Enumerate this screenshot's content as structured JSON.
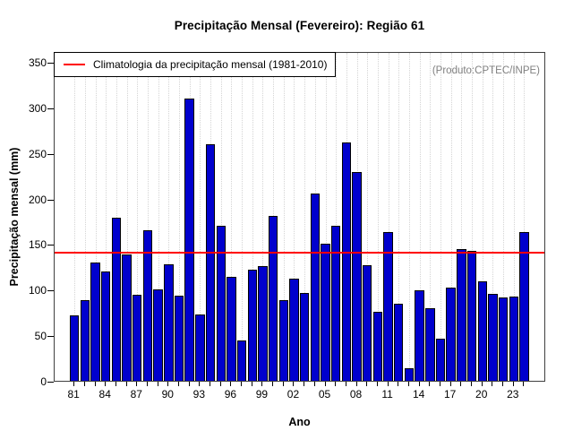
{
  "chart_data": {
    "type": "bar",
    "title": "Precipitação Mensal (Fevereiro): Região 61",
    "xlabel": "Ano",
    "ylabel": "Precipitação mensal (mm)",
    "annotation": "(Produto:CPTEC/INPE)",
    "legend": {
      "label": "Climatologia da precipitação mensal (1981-2010)",
      "position": "topleft",
      "line_color": "#ff0000"
    },
    "reference_line": {
      "name": "climatologia",
      "value": 141,
      "color": "#ff0000"
    },
    "ylim": [
      0,
      350
    ],
    "yticks": [
      0,
      50,
      100,
      150,
      200,
      250,
      300,
      350
    ],
    "xtick_labels": [
      "81",
      "84",
      "87",
      "90",
      "93",
      "96",
      "99",
      "02",
      "05",
      "08",
      "11",
      "14",
      "17",
      "20",
      "23"
    ],
    "xtick_every": 3,
    "grid": "vertical-dotted",
    "legend_box": true,
    "bar_color": "#0000CD",
    "bar_border_color": "#000000",
    "categories": [
      1981,
      1982,
      1983,
      1984,
      1985,
      1986,
      1987,
      1988,
      1989,
      1990,
      1991,
      1992,
      1993,
      1994,
      1995,
      1996,
      1997,
      1998,
      1999,
      2000,
      2001,
      2002,
      2003,
      2004,
      2005,
      2006,
      2007,
      2008,
      2009,
      2010,
      2011,
      2012,
      2013,
      2014,
      2015,
      2016,
      2017,
      2018,
      2019,
      2020,
      2021,
      2022,
      2023,
      2024
    ],
    "values": [
      72,
      88,
      130,
      120,
      179,
      139,
      94,
      165,
      100,
      128,
      93,
      310,
      73,
      260,
      170,
      114,
      44,
      122,
      126,
      181,
      88,
      112,
      96,
      205,
      150,
      170,
      262,
      229,
      127,
      76,
      163,
      85,
      14,
      99,
      80,
      46,
      102,
      145,
      143,
      109,
      95,
      91,
      92,
      163
    ]
  }
}
